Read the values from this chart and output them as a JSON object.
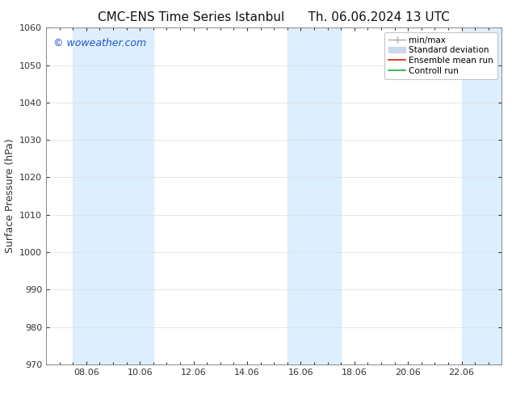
{
  "title_left": "CMC-ENS Time Series Istanbul",
  "title_right": "Th. 06.06.2024 13 UTC",
  "ylabel": "Surface Pressure (hPa)",
  "ylim": [
    970,
    1060
  ],
  "yticks": [
    970,
    980,
    990,
    1000,
    1010,
    1020,
    1030,
    1040,
    1050,
    1060
  ],
  "xtick_labels": [
    "08.06",
    "10.06",
    "12.06",
    "14.06",
    "16.06",
    "18.06",
    "20.06",
    "22.06"
  ],
  "xtick_positions": [
    2,
    4,
    6,
    8,
    10,
    12,
    14,
    16
  ],
  "xlim": [
    0.5,
    17.5
  ],
  "shaded_bands": [
    {
      "xmin": 1.5,
      "xmax": 4.5
    },
    {
      "xmin": 9.5,
      "xmax": 11.5
    },
    {
      "xmin": 16.0,
      "xmax": 17.5
    }
  ],
  "shade_color": "#ddeeff",
  "watermark": "© woweather.com",
  "watermark_color": "#2255cc",
  "legend_entries": [
    {
      "label": "min/max",
      "color": "#aaaaaa",
      "lw": 1.0,
      "style": "minmax"
    },
    {
      "label": "Standard deviation",
      "color": "#c8daea",
      "lw": 8,
      "style": "thick"
    },
    {
      "label": "Ensemble mean run",
      "color": "#cc2200",
      "lw": 1.2,
      "style": "line"
    },
    {
      "label": "Controll run",
      "color": "#22aa33",
      "lw": 1.2,
      "style": "line"
    }
  ],
  "bg_color": "#ffffff",
  "plot_bg_color": "#ffffff",
  "grid_color": "#dddddd",
  "tick_color": "#333333",
  "title_fontsize": 11,
  "label_fontsize": 9,
  "tick_fontsize": 8,
  "watermark_fontsize": 9,
  "legend_fontsize": 7.5
}
